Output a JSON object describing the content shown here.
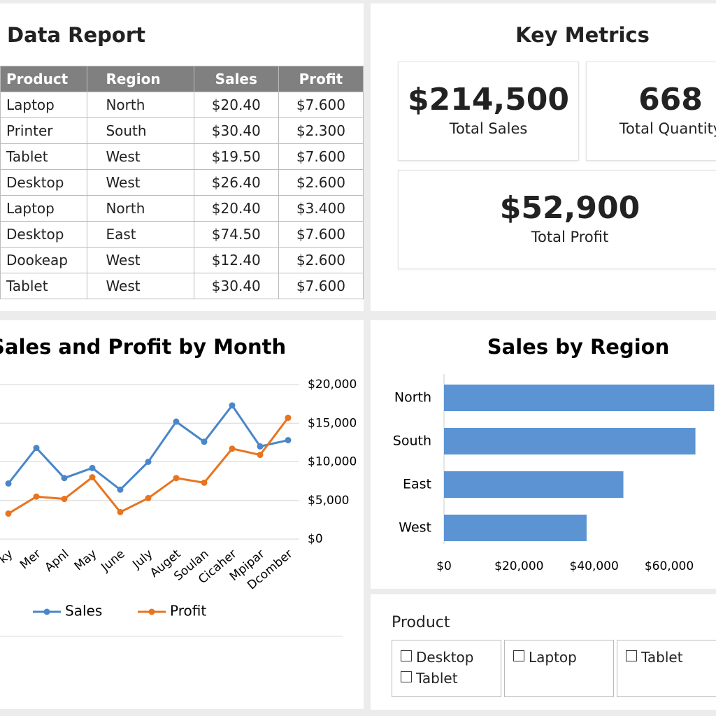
{
  "table": {
    "title": "Data Report",
    "header": [
      "Product",
      "Region",
      "Sales",
      "Profit"
    ],
    "rows": [
      [
        "Laptop",
        "North",
        "$20.40",
        "$7.600"
      ],
      [
        "Printer",
        "South",
        "$30.40",
        "$2.300"
      ],
      [
        "Tablet",
        "West",
        "$19.50",
        "$7.600"
      ],
      [
        "Desktop",
        "West",
        "$26.40",
        "$2.600"
      ],
      [
        "Laptop",
        "North",
        "$20.40",
        "$3.400"
      ],
      [
        "Desktop",
        "East",
        "$74.50",
        "$7.600"
      ],
      [
        "Dookeap",
        "West",
        "$12.40",
        "$2.600"
      ],
      [
        "Tablet",
        "West",
        "$30.40",
        "$7.600"
      ]
    ]
  },
  "metrics": {
    "title": "Key Metrics",
    "cards": [
      {
        "value": "$214,500",
        "label": "Total Sales"
      },
      {
        "value": "668",
        "label": "Total Quantity"
      },
      {
        "value": "$52,900",
        "label": "Total Profit"
      }
    ]
  },
  "chart_data": [
    {
      "type": "line",
      "title": "Sales and Profit by Month",
      "categories": [
        "ky",
        "Mer",
        "Apnl",
        "May",
        "June",
        "July",
        "Auget",
        "Soulan",
        "Cicaher",
        "Mpipar",
        "Dcomber"
      ],
      "series": [
        {
          "name": "Sales",
          "color": "#4a86c8",
          "values": [
            7200,
            11800,
            7900,
            9200,
            6400,
            10000,
            15200,
            12600,
            17300,
            12000,
            12800
          ]
        },
        {
          "name": "Profit",
          "color": "#e8741e",
          "values": [
            3300,
            5500,
            5200,
            8000,
            3500,
            5300,
            7900,
            7300,
            11700,
            10900,
            15700
          ]
        }
      ],
      "ylim": [
        0,
        20000
      ],
      "yticks": [
        {
          "value": 0,
          "label": "$0"
        },
        {
          "value": 5000,
          "label": "$5,000"
        },
        {
          "value": 10000,
          "label": "$10,000"
        },
        {
          "value": 15000,
          "label": "$15,000"
        },
        {
          "value": 20000,
          "label": "$20,000"
        }
      ],
      "grid": true,
      "legend": "bottom"
    },
    {
      "type": "barh",
      "title": "Sales by Region",
      "categories": [
        "North",
        "South",
        "East",
        "West"
      ],
      "values": [
        72000,
        67000,
        47800,
        38000
      ],
      "color": "#5b93d3",
      "xlim": [
        0,
        72000
      ],
      "xticks": [
        {
          "value": 0,
          "label": "$0"
        },
        {
          "value": 20000,
          "label": "$20,000"
        },
        {
          "value": 40000,
          "label": "$40,000"
        },
        {
          "value": 60000,
          "label": "$60,000"
        }
      ]
    }
  ],
  "filter": {
    "title": "Product",
    "groups": [
      [
        "Desktop",
        "Tablet"
      ],
      [
        "Laptop"
      ],
      [
        "Tablet"
      ]
    ]
  }
}
